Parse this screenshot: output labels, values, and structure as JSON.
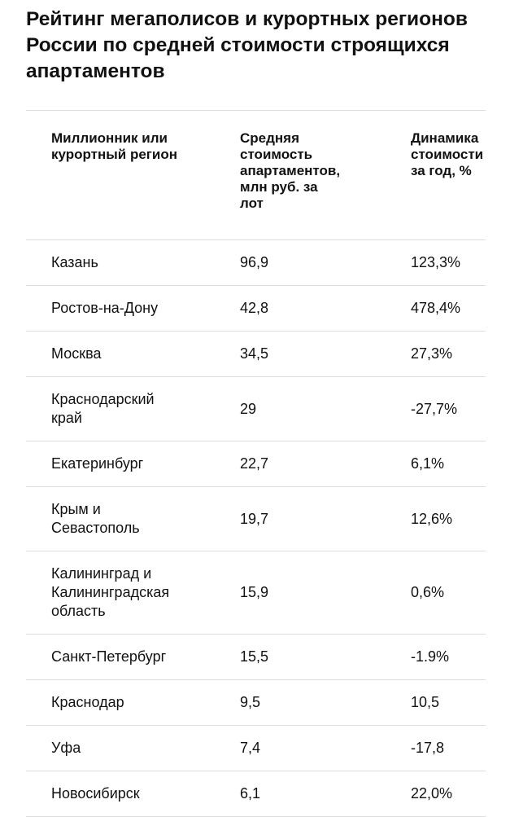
{
  "header": {
    "title": "Рейтинг мегаполисов и курортных регионов России по средней стоимости строящихся апартаментов"
  },
  "table": {
    "columns": [
      "Миллионник или курортный регион",
      "Средняя стоимость апартаментов, млн руб. за лот",
      "Динамика стоимости за год, %"
    ],
    "rows": [
      [
        "Казань",
        "96,9",
        "123,3%"
      ],
      [
        "Ростов-на-Дону",
        "42,8",
        "478,4%"
      ],
      [
        "Москва",
        "34,5",
        "27,3%"
      ],
      [
        "Краснодарский край",
        "29",
        "-27,7%"
      ],
      [
        "Екатеринбург",
        "22,7",
        "6,1%"
      ],
      [
        "Крым и Севастополь",
        "19,7",
        "12,6%"
      ],
      [
        "Калининград и Калининградская область",
        "15,9",
        "0,6%"
      ],
      [
        "Санкт-Петербург",
        "15,5",
        "-1.9%"
      ],
      [
        "Краснодар",
        "9,5",
        "10,5"
      ],
      [
        "Уфа",
        "7,4",
        "-17,8"
      ],
      [
        "Новосибирск",
        "6,1",
        "22,0%"
      ]
    ]
  }
}
